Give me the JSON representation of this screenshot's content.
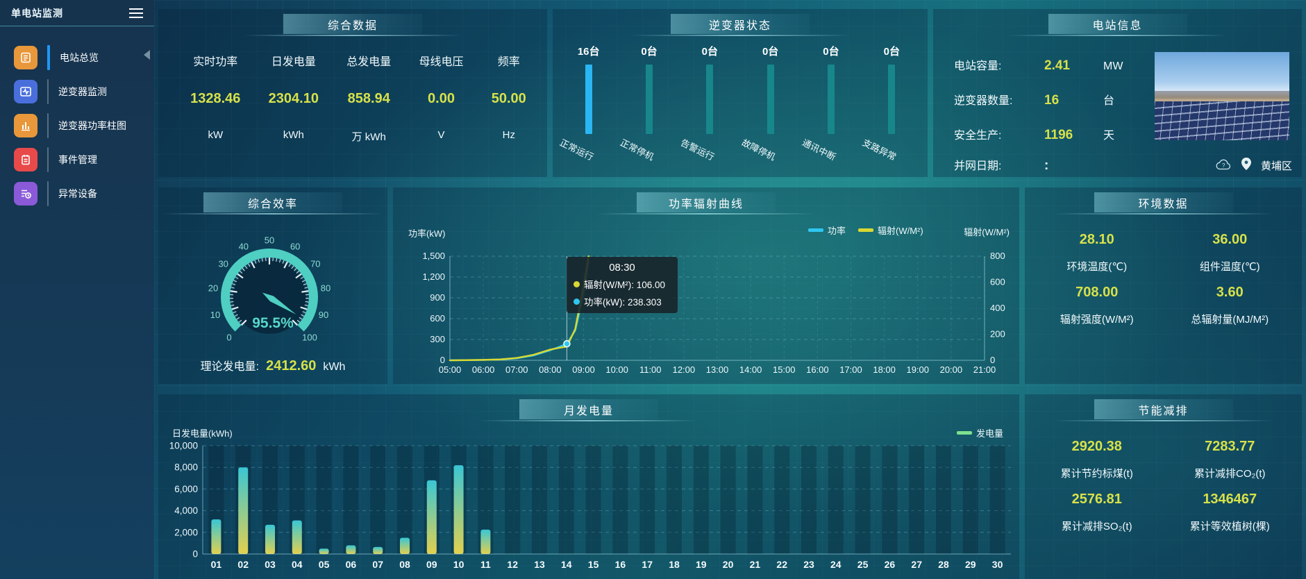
{
  "sidebar": {
    "title": "单电站监测",
    "items": [
      {
        "label": "电站总览",
        "icon": "station-overview-icon",
        "color": "#e8973a",
        "active": true
      },
      {
        "label": "逆变器监测",
        "icon": "inverter-monitor-icon",
        "color": "#4a6fdc",
        "active": false
      },
      {
        "label": "逆变器功率柱图",
        "icon": "inverter-power-bars-icon",
        "color": "#e8973a",
        "active": false
      },
      {
        "label": "事件管理",
        "icon": "event-management-icon",
        "color": "#e84a4a",
        "active": false
      },
      {
        "label": "异常设备",
        "icon": "abnormal-devices-icon",
        "color": "#8a5ad8",
        "active": false
      }
    ]
  },
  "summary": {
    "title": "综合数据",
    "stats": [
      {
        "label": "实时功率",
        "value": "1328.46",
        "unit": "kW"
      },
      {
        "label": "日发电量",
        "value": "2304.10",
        "unit": "kWh"
      },
      {
        "label": "总发电量",
        "value": "858.94",
        "unit": "万 kWh"
      },
      {
        "label": "母线电压",
        "value": "0.00",
        "unit": "V"
      },
      {
        "label": "频率",
        "value": "50.00",
        "unit": "Hz"
      }
    ]
  },
  "inverter_status": {
    "title": "逆变器状态",
    "unit_suffix": "台",
    "items": [
      {
        "count": 16,
        "label": "正常运行",
        "color": "#29b6f2"
      },
      {
        "count": 0,
        "label": "正常停机",
        "color": "#17878c"
      },
      {
        "count": 0,
        "label": "告警运行",
        "color": "#17878c"
      },
      {
        "count": 0,
        "label": "故障停机",
        "color": "#17878c"
      },
      {
        "count": 0,
        "label": "通讯中断",
        "color": "#17878c"
      },
      {
        "count": 0,
        "label": "支路异常",
        "color": "#17878c"
      }
    ]
  },
  "station_info": {
    "title": "电站信息",
    "rows": [
      {
        "label": "电站容量:",
        "value": "2.41",
        "unit": "MW"
      },
      {
        "label": "逆变器数量:",
        "value": "16",
        "unit": "台"
      },
      {
        "label": "安全生产:",
        "value": "1196",
        "unit": "天"
      },
      {
        "label": "并网日期: ",
        "value": ":",
        "unit": ""
      }
    ],
    "location": "黄埔区"
  },
  "efficiency": {
    "title": "综合效率",
    "footer_label": "理论发电量:",
    "footer_value": "2412.60",
    "footer_unit": "kWh"
  },
  "environment": {
    "title": "环境数据",
    "stats": [
      {
        "value": "28.10",
        "label": "环境温度(℃)"
      },
      {
        "value": "36.00",
        "label": "组件温度(℃)"
      },
      {
        "value": "708.00",
        "label": "辐射强度(W/M²)"
      },
      {
        "value": "3.60",
        "label": "总辐射量(MJ/M²)"
      }
    ]
  },
  "energy_saving": {
    "title": "节能减排",
    "stats": [
      {
        "value": "2920.38",
        "label": "累计节约标煤(t)"
      },
      {
        "value": "7283.77",
        "label": "累计减排CO₂(t)"
      },
      {
        "value": "2576.81",
        "label": "累计减排SO₂(t)"
      },
      {
        "value": "1346467",
        "label": "累计等效植树(棵)"
      }
    ]
  },
  "chart_data": [
    {
      "type": "line",
      "title": "功率辐射曲线",
      "x_hours": [
        5,
        5.5,
        6,
        6.5,
        7,
        7.5,
        8,
        8.25,
        8.5,
        8.75,
        9,
        9.15
      ],
      "x_axis_labels": [
        "05:00",
        "06:00",
        "07:00",
        "08:00",
        "09:00",
        "10:00",
        "11:00",
        "12:00",
        "13:00",
        "14:00",
        "15:00",
        "16:00",
        "17:00",
        "18:00",
        "19:00",
        "20:00",
        "21:00"
      ],
      "series": [
        {
          "name": "功率",
          "axis": "left",
          "color": "#2ec7f0",
          "values": [
            0,
            2,
            5,
            12,
            30,
            70,
            145,
            190,
            238.303,
            430,
            950,
            1430
          ]
        },
        {
          "name": "辐射(W/M²)",
          "axis": "right",
          "color": "#d8d832",
          "values": [
            0,
            1,
            3,
            7,
            18,
            42,
            82,
            95,
            106,
            240,
            570,
            800
          ]
        }
      ],
      "left_axis": {
        "label": "功率(kW)",
        "min": 0,
        "max": 1500,
        "ticks": [
          0,
          300,
          600,
          900,
          1200,
          1500
        ]
      },
      "right_axis": {
        "label": "辐射(W/M²)",
        "min": 0,
        "max": 800,
        "ticks": [
          0,
          200,
          400,
          600,
          800
        ]
      },
      "legend": [
        {
          "name": "功率",
          "color": "#2ec7f0"
        },
        {
          "name": "辐射(W/M²)",
          "color": "#d8d832"
        }
      ],
      "tooltip": {
        "time": "08:30",
        "x_hour": 8.5,
        "rows": [
          {
            "name": "辐射(W/M²)",
            "value": "106.00",
            "color": "#d8d832"
          },
          {
            "name": "功率(kW)",
            "value": "238.303",
            "color": "#2ec7f0"
          }
        ]
      }
    },
    {
      "type": "bar",
      "title": "月发电量",
      "ylabel": "日发电量(kWh)",
      "categories": [
        "01",
        "02",
        "03",
        "04",
        "05",
        "06",
        "07",
        "08",
        "09",
        "10",
        "11",
        "12",
        "13",
        "14",
        "15",
        "16",
        "17",
        "18",
        "19",
        "20",
        "21",
        "22",
        "23",
        "24",
        "25",
        "26",
        "27",
        "28",
        "29",
        "30"
      ],
      "values": [
        3200,
        8000,
        2700,
        3100,
        500,
        800,
        650,
        1500,
        6800,
        8200,
        2250,
        0,
        0,
        0,
        0,
        0,
        0,
        0,
        0,
        0,
        0,
        0,
        0,
        0,
        0,
        0,
        0,
        0,
        0,
        0
      ],
      "ylim": [
        0,
        10000
      ],
      "yticks": [
        0,
        2000,
        4000,
        6000,
        8000,
        10000
      ],
      "legend": [
        {
          "name": "发电量",
          "color": "#7ee08e"
        }
      ],
      "bar_gradient_top": "#3ac6d4",
      "bar_gradient_bottom": "#e2d04e"
    },
    {
      "type": "gauge",
      "title": "综合效率",
      "value": 95.5,
      "display": "95.5%",
      "min": 0,
      "max": 100,
      "tick_step": 10,
      "color": "#4ecfc2"
    }
  ]
}
